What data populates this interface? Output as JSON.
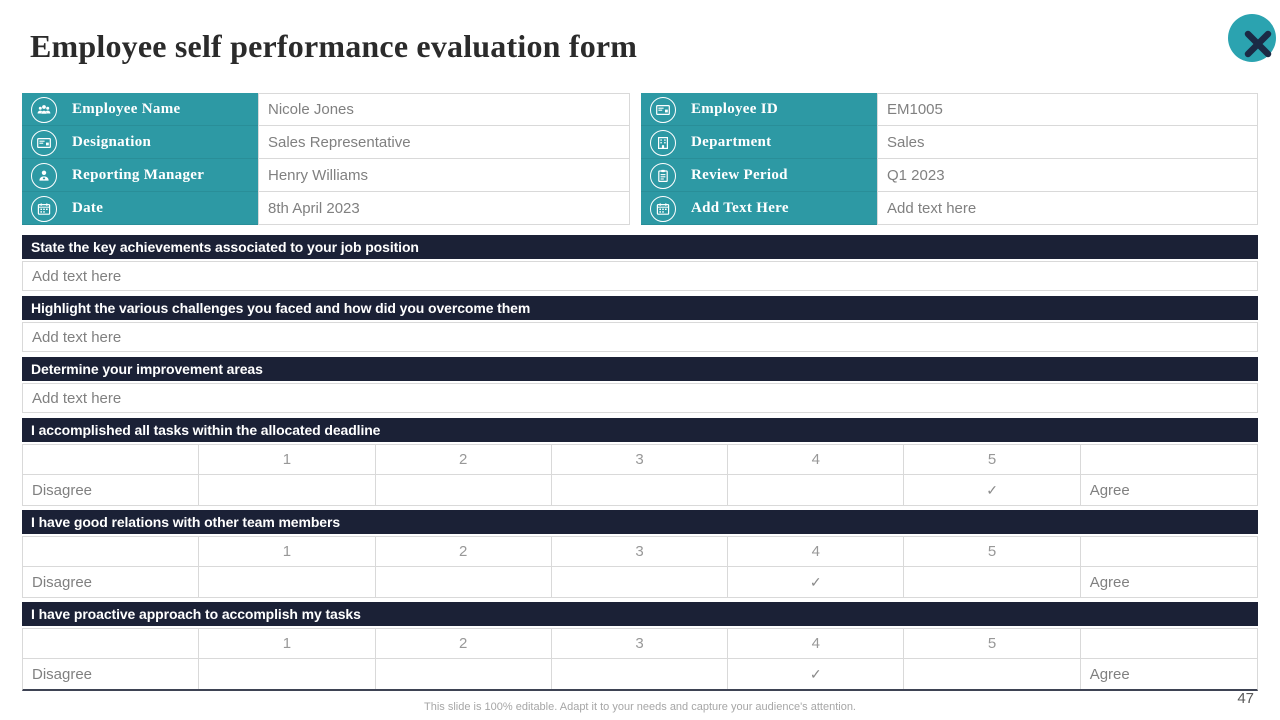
{
  "slide": {
    "title": "Employee self performance evaluation form",
    "page_number": "47",
    "footer_note": "This slide is 100% editable.  Adapt it to your needs and capture your audience's attention."
  },
  "colors": {
    "teal": "#2D99A4",
    "teal_button": "#2BA3B0",
    "navy": "#1B2136",
    "border": "#D9D9D9",
    "value_text": "#808080"
  },
  "close_button": {
    "icon": "close-icon"
  },
  "info": {
    "left": [
      {
        "icon": "people-group-icon",
        "label": "Employee Name",
        "value": "Nicole Jones"
      },
      {
        "icon": "id-card-icon",
        "label": "Designation",
        "value": "Sales Representative"
      },
      {
        "icon": "manager-icon",
        "label": "Reporting Manager",
        "value": "Henry Williams"
      },
      {
        "icon": "calendar-icon",
        "label": "Date",
        "value": "8th April 2023"
      }
    ],
    "right": [
      {
        "icon": "id-card-icon",
        "label": "Employee ID",
        "value": "EM1005"
      },
      {
        "icon": "building-icon",
        "label": "Department",
        "value": "Sales"
      },
      {
        "icon": "clipboard-icon",
        "label": "Review Period",
        "value": "Q1 2023"
      },
      {
        "icon": "calendar-icon",
        "label": "Add Text Here",
        "value": "Add text here"
      }
    ]
  },
  "questions": [
    {
      "heading": "State the key achievements associated to your job position",
      "answer": "Add text here"
    },
    {
      "heading": "Highlight the various challenges you faced and how did you overcome them",
      "answer": "Add text here"
    },
    {
      "heading": "Determine your improvement areas",
      "answer": "Add text here"
    }
  ],
  "ratings": {
    "scale": [
      "1",
      "2",
      "3",
      "4",
      "5"
    ],
    "left_label": "Disagree",
    "right_label": "Agree",
    "check_glyph": "✓",
    "items": [
      {
        "statement": "I accomplished all tasks within the allocated deadline",
        "selected": 5
      },
      {
        "statement": "I have good relations with other team members",
        "selected": 4
      },
      {
        "statement": "I have proactive approach to accomplish my tasks",
        "selected": 4
      }
    ]
  }
}
